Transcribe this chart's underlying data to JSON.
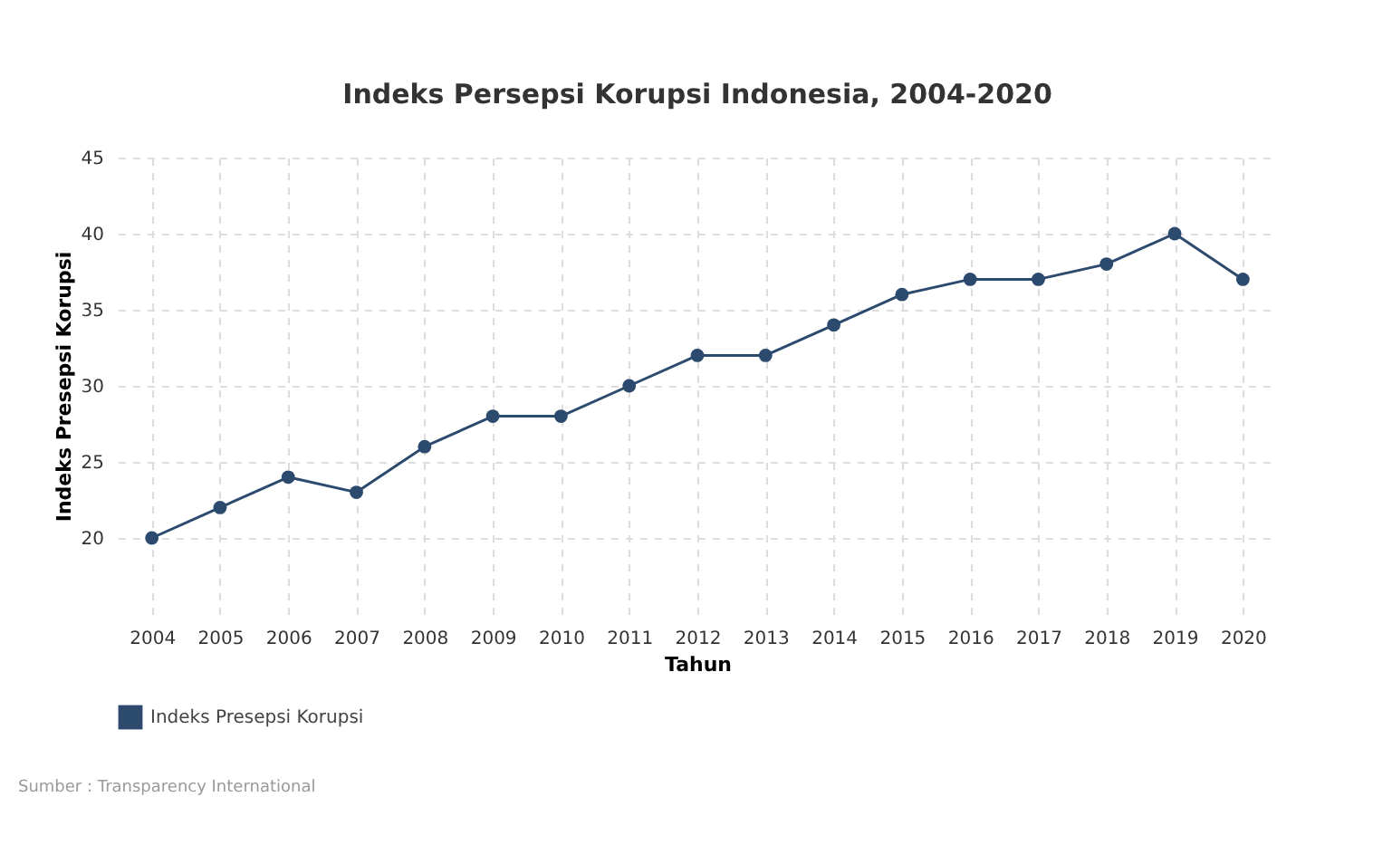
{
  "chart_data": {
    "type": "line",
    "title": "Indeks Persepsi Korupsi Indonesia, 2004-2020",
    "xlabel": "Tahun",
    "ylabel": "Indeks Presepsi Korupsi",
    "categories": [
      "2004",
      "2005",
      "2006",
      "2007",
      "2008",
      "2009",
      "2010",
      "2011",
      "2012",
      "2013",
      "2014",
      "2015",
      "2016",
      "2017",
      "2018",
      "2019",
      "2020"
    ],
    "series": [
      {
        "name": "Indeks Presepsi Korupsi",
        "color": "#2c4a6e",
        "values": [
          20,
          22,
          24,
          23,
          26,
          28,
          28,
          30,
          32,
          32,
          34,
          36,
          37,
          37,
          38,
          40,
          37
        ]
      }
    ],
    "ylim": [
      15,
      45
    ],
    "yticks": [
      20,
      25,
      30,
      35,
      40,
      45
    ],
    "grid": true,
    "legend": "bottom left",
    "marker": "circle",
    "line_style": "solid",
    "annotations": [
      "Sumber : Transparency International"
    ]
  }
}
